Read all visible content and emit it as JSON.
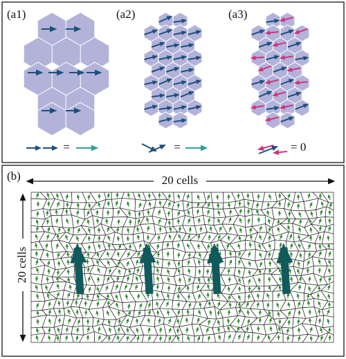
{
  "panel_a": {
    "panels": [
      {
        "label": "(a1)",
        "equation": "="
      },
      {
        "label": "(a2)",
        "equation": "="
      },
      {
        "label": "(a3)",
        "equation": "= 0"
      }
    ]
  },
  "panel_b": {
    "label": "(b)",
    "width_label": "20 cells",
    "height_label": "20 cells"
  }
}
